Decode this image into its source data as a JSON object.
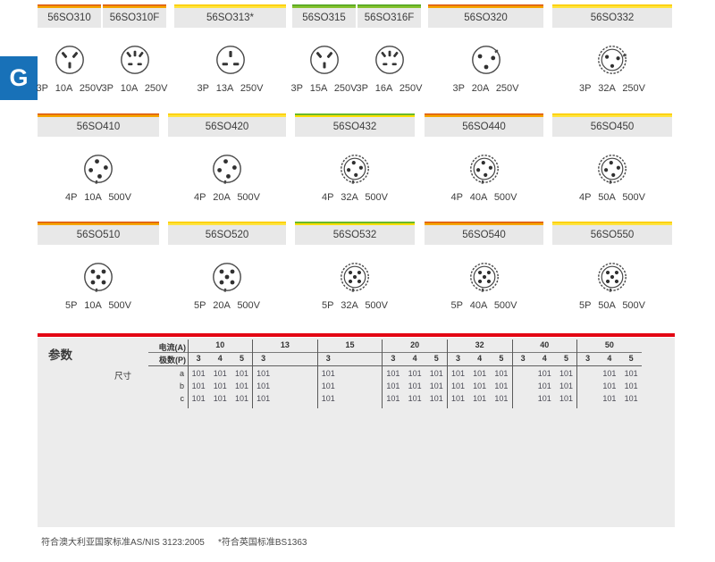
{
  "tab": {
    "label": "G"
  },
  "product_rows": [
    {
      "products": [
        {
          "model": "56SO310",
          "bar": "orange",
          "icon": "socket-aus-3pin",
          "rating": "3P 10A 250V"
        },
        {
          "model": "56SO310F",
          "bar": "orange",
          "icon": "socket-multi-3pin",
          "rating": "3P 10A 250V"
        },
        {
          "model": "56SO313*",
          "bar": "yellow",
          "icon": "socket-bs1363",
          "rating": "3P 13A 250V"
        },
        {
          "model": "56SO315",
          "bar": "green",
          "icon": "socket-aus-3pin",
          "rating": "3P 15A 250V"
        },
        {
          "model": "56SO316F",
          "bar": "green",
          "icon": "socket-multi-3pin",
          "rating": "3P 16A 250V"
        },
        {
          "model": "56SO320",
          "bar": "orange",
          "icon": "round-3pin",
          "rating": "3P 20A 250V"
        },
        {
          "model": "56SO332",
          "bar": "yellow",
          "icon": "round-3pin-double",
          "rating": "3P 32A 250V"
        }
      ]
    },
    {
      "products": [
        {
          "model": "56SO410",
          "bar": "orange",
          "icon": "round-4pin",
          "rating": "4P 10A 500V"
        },
        {
          "model": "56SO420",
          "bar": "yellow",
          "icon": "round-4pin",
          "rating": "4P 20A 500V"
        },
        {
          "model": "56SO432",
          "bar": "green-yellow",
          "icon": "round-4pin-double",
          "rating": "4P 32A 500V"
        },
        {
          "model": "56SO440",
          "bar": "orange",
          "icon": "round-4pin-double",
          "rating": "4P 40A 500V"
        },
        {
          "model": "56SO450",
          "bar": "yellow",
          "icon": "round-4pin-double",
          "rating": "4P 50A 500V"
        }
      ]
    },
    {
      "products": [
        {
          "model": "56SO510",
          "bar": "orange",
          "icon": "round-5pin",
          "rating": "5P 10A 500V"
        },
        {
          "model": "56SO520",
          "bar": "yellow",
          "icon": "round-5pin",
          "rating": "5P 20A 500V"
        },
        {
          "model": "56SO532",
          "bar": "green-yellow",
          "icon": "round-5pin-double",
          "rating": "5P 32A 500V"
        },
        {
          "model": "56SO540",
          "bar": "orange",
          "icon": "round-5pin-double",
          "rating": "5P 40A 500V"
        },
        {
          "model": "56SO550",
          "bar": "yellow",
          "icon": "round-5pin-double",
          "rating": "5P 50A 500V"
        }
      ]
    }
  ],
  "table": {
    "section_label": "参数",
    "current_label": "电流(A)",
    "poles_label": "极数(P)",
    "dims_label": "尺寸",
    "dim_rows": [
      "a",
      "b",
      "c"
    ],
    "groups": [
      {
        "current": "10",
        "poles": [
          "3",
          "4",
          "5"
        ],
        "a": [
          "101",
          "101",
          "101"
        ],
        "b": [
          "101",
          "101",
          "101"
        ],
        "c": [
          "101",
          "101",
          "101"
        ]
      },
      {
        "current": "13",
        "poles": [
          "3",
          "",
          ""
        ],
        "a": [
          "101",
          "",
          ""
        ],
        "b": [
          "101",
          "",
          ""
        ],
        "c": [
          "101",
          "",
          ""
        ]
      },
      {
        "current": "15",
        "poles": [
          "3",
          "",
          ""
        ],
        "a": [
          "101",
          "",
          ""
        ],
        "b": [
          "101",
          "",
          ""
        ],
        "c": [
          "101",
          "",
          ""
        ]
      },
      {
        "current": "20",
        "poles": [
          "3",
          "4",
          "5"
        ],
        "a": [
          "101",
          "101",
          "101"
        ],
        "b": [
          "101",
          "101",
          "101"
        ],
        "c": [
          "101",
          "101",
          "101"
        ]
      },
      {
        "current": "32",
        "poles": [
          "3",
          "4",
          "5"
        ],
        "a": [
          "101",
          "101",
          "101"
        ],
        "b": [
          "101",
          "101",
          "101"
        ],
        "c": [
          "101",
          "101",
          "101"
        ]
      },
      {
        "current": "40",
        "poles": [
          "3",
          "4",
          "5"
        ],
        "a": [
          "",
          "101",
          "101"
        ],
        "b": [
          "",
          "101",
          "101"
        ],
        "c": [
          "",
          "101",
          "101"
        ]
      },
      {
        "current": "50",
        "poles": [
          "3",
          "4",
          "5"
        ],
        "a": [
          "",
          "101",
          "101"
        ],
        "b": [
          "",
          "101",
          "101"
        ],
        "c": [
          "",
          "101",
          "101"
        ]
      }
    ]
  },
  "footnotes": [
    "符合澳大利亚国家标准AS/NIS 3123:2005",
    "*符合英国标准BS1363"
  ],
  "colors": {
    "bar_orange_top": "#dc5305",
    "bar_orange": "#f6a500",
    "bar_yellow_top": "#fbca00",
    "bar_yellow": "#ffe43e",
    "bar_green_top": "#4fa31e",
    "bar_green": "#86c22f",
    "bar_greenyellow_green": "#6ab82a",
    "bar_greenyellow_yellow": "#ffdf00",
    "rule_red": "#e30613",
    "tab_blue": "#1871b8",
    "header_gray": "#e8e8e8",
    "panel_gray": "#ececec",
    "ink": "#474747"
  }
}
